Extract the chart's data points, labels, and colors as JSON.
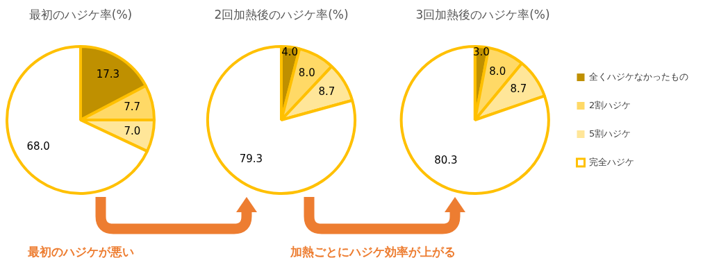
{
  "chart_data": [
    {
      "type": "pie",
      "title": "最初のハジケ率(%)",
      "categories": [
        null,
        null,
        null,
        null
      ],
      "values": [
        17.3,
        7.7,
        7.0,
        68.0
      ],
      "colors": [
        "#bf9000",
        "#ffd966",
        "#ffe699",
        "#ffffff"
      ],
      "value_labels": [
        "17.3",
        "7.7",
        "7.0",
        "68.0"
      ],
      "annotations": [
        "最初のハジケが悪い"
      ]
    },
    {
      "type": "pie",
      "title": "2回加熱後のハジケ率(%)",
      "categories": [
        null,
        null,
        null,
        null
      ],
      "values": [
        4.0,
        8.0,
        8.7,
        79.3
      ],
      "colors": [
        "#bf9000",
        "#ffd966",
        "#ffe699",
        "#ffffff"
      ],
      "value_labels": [
        "4.0",
        "8.0",
        "8.7",
        "79.3"
      ],
      "annotations": [
        "加熱ごとにハジケ効率が上がる"
      ]
    },
    {
      "type": "pie",
      "title": "3回加熱後のハジケ率(%)",
      "categories": [
        "全くハジケなかったもの",
        "2割ハジケ",
        "5割ハジケ",
        "完全ハジケ"
      ],
      "values": [
        3.0,
        8.0,
        8.7,
        80.3
      ],
      "colors": [
        "#bf9000",
        "#ffd966",
        "#ffe699",
        "#ffffff"
      ],
      "value_labels": [
        "3.0",
        "8.0",
        "8.7",
        "80.3"
      ],
      "legend": "right"
    }
  ]
}
